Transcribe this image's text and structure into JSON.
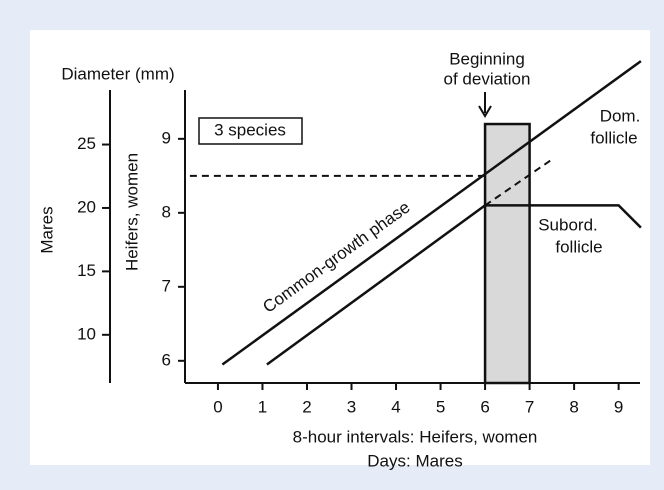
{
  "chart_data": {
    "type": "line",
    "ylabel": "Heifers, women",
    "y2label": "Mares",
    "y2title": "Diameter (mm)",
    "xlabel": [
      "8-hour intervals: Heifers, women",
      "Days: Mares"
    ],
    "xlim": [
      -0.74,
      9.48
    ],
    "xticks": [
      0,
      1,
      2,
      3,
      4,
      5,
      6,
      7,
      8,
      9
    ],
    "ylim": [
      5.7,
      9.66
    ],
    "yticks": [
      6,
      7,
      8,
      9
    ],
    "y2lim": [
      6.2,
      29.3
    ],
    "y2ticks": [
      10,
      15,
      20,
      25
    ],
    "series": [
      {
        "name": "Dom. follicle",
        "color": "#111111",
        "x": [
          0.1,
          9.5
        ],
        "y": [
          5.95,
          10.05
        ]
      },
      {
        "name": "Subord. follicle",
        "color": "#111111",
        "x": [
          1.1,
          6,
          9,
          9.5
        ],
        "y": [
          5.95,
          8.1,
          8.1,
          7.8
        ]
      },
      {
        "color": "#111111",
        "dashed": true,
        "x": [
          6,
          7.5
        ],
        "y": [
          8.1,
          8.72
        ]
      },
      {
        "color": "#111111",
        "dashed": true,
        "x": [
          -0.63,
          6
        ],
        "y": [
          8.5,
          8.5
        ]
      }
    ],
    "shaded": {
      "x": [
        6,
        7
      ],
      "y_top": 9.2,
      "color": "#d9d9d9"
    },
    "annotations": {
      "box": "3 species",
      "deviation": [
        "Beginning",
        "of deviation"
      ],
      "dom": [
        "Dom.",
        "follicle"
      ],
      "subord": [
        "Subord.",
        "follicle"
      ],
      "phase": "Common-growth phase"
    }
  }
}
